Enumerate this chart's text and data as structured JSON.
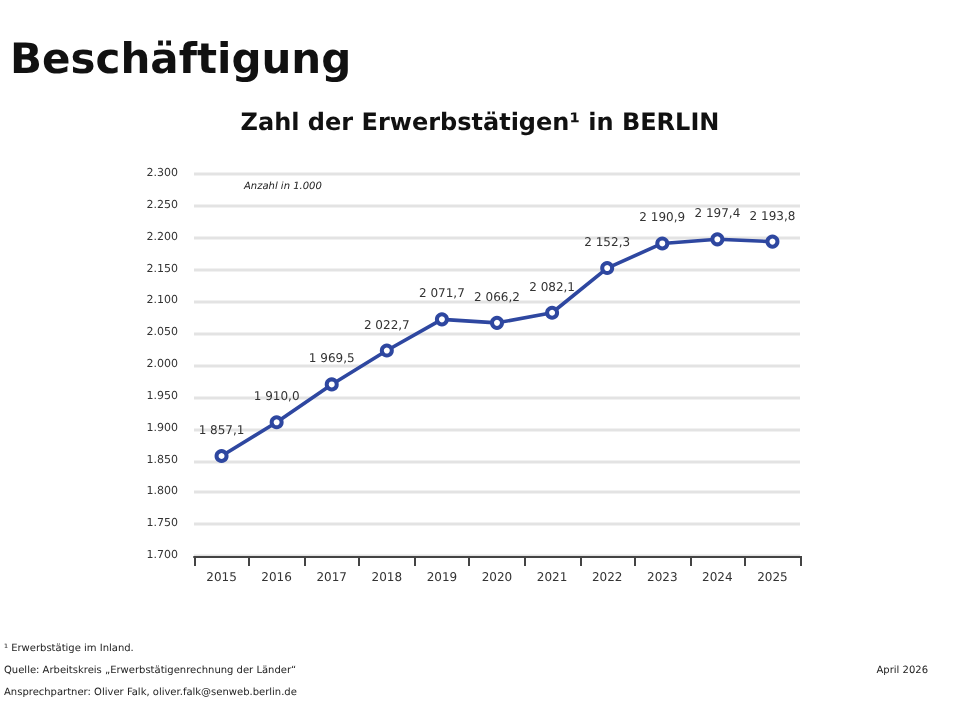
{
  "chart_data": {
    "type": "line",
    "title": "Beschäftigung",
    "subtitle": "Zahl der Erwerbstätigen¹ in BERLIN",
    "categories": [
      "2015",
      "2016",
      "2017",
      "2018",
      "2019",
      "2020",
      "2021",
      "2022",
      "2023",
      "2024",
      "2025"
    ],
    "series": [
      {
        "color": "#2e47a0",
        "values": [
          1857.1,
          1910.0,
          1969.5,
          2022.7,
          2071.7,
          2066.2,
          2082.1,
          2152.3,
          2190.9,
          2197.4,
          2193.8
        ],
        "value_labels": [
          "1 857,1",
          "1 910,0",
          "1 969,5",
          "2 022,7",
          "2 071,7",
          "2 066,2",
          "2 082,1",
          "2 152,3",
          "2 190,9",
          "2 197,4",
          "2 193,8"
        ]
      }
    ],
    "ylim": [
      1700,
      2300
    ],
    "yticks": [
      {
        "value": 1700,
        "label": "1.700"
      },
      {
        "value": 1750,
        "label": "1.750"
      },
      {
        "value": 1800,
        "label": "1.800"
      },
      {
        "value": 1850,
        "label": "1.850"
      },
      {
        "value": 1900,
        "label": "1.900"
      },
      {
        "value": 1950,
        "label": "1.950"
      },
      {
        "value": 2000,
        "label": "2.000"
      },
      {
        "value": 2050,
        "label": "2.050"
      },
      {
        "value": 2100,
        "label": "2.100"
      },
      {
        "value": 2150,
        "label": "2.150"
      },
      {
        "value": 2200,
        "label": "2.200"
      },
      {
        "value": 2250,
        "label": "2.250"
      },
      {
        "value": 2300,
        "label": "2.300"
      }
    ],
    "grid": "y",
    "marker": "circle",
    "line_style": "solid",
    "annotations": [
      "Anzahl in 1.000",
      "¹ Erwerbstätige im Inland.",
      "Quelle: Arbeitskreis „Erwerbstätigenrechnung der Länder“",
      "Ansprechpartner: Oliver Falk, oliver.falk@senweb.berlin.de",
      "April 2026"
    ]
  }
}
